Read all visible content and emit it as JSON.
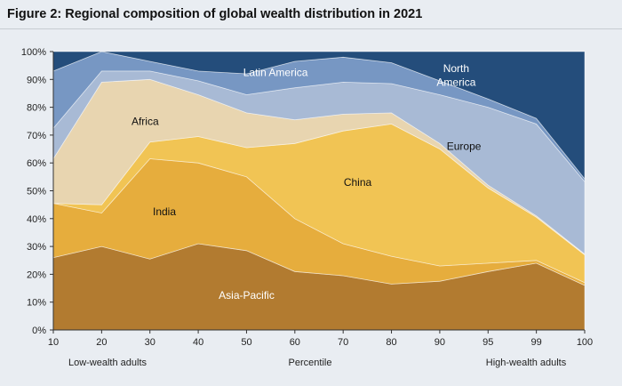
{
  "figure_title": "Figure 2: Regional composition of global wealth distribution in 2021",
  "chart_data": {
    "type": "area",
    "stacked": true,
    "x": [
      "10",
      "20",
      "30",
      "40",
      "50",
      "60",
      "70",
      "80",
      "90",
      "95",
      "99",
      "100"
    ],
    "xlabel": "Percentile",
    "xlabel_left": "Low-wealth adults",
    "xlabel_right": "High-wealth adults",
    "ylim": [
      0,
      100
    ],
    "yticks": [
      "0%",
      "10%",
      "20%",
      "30%",
      "40%",
      "50%",
      "60%",
      "70%",
      "80%",
      "90%",
      "100%"
    ],
    "grid": false,
    "legend": "none (labels inside areas)",
    "series": [
      {
        "name": "Asia-Pacific",
        "values": [
          26,
          30,
          25.5,
          31,
          28.5,
          21,
          19.5,
          16.5,
          17.5,
          21,
          24,
          16
        ],
        "color": "#b27b30",
        "label_color": "#ffffff"
      },
      {
        "name": "India",
        "values": [
          19.5,
          12,
          36,
          29,
          26.5,
          19,
          11.5,
          10,
          5.5,
          3,
          1,
          1
        ],
        "color": "#e6ad3d",
        "label_color": "#111111"
      },
      {
        "name": "China",
        "values": [
          0,
          3,
          6,
          9.5,
          10.5,
          27,
          40.5,
          47.5,
          42,
          27,
          15.5,
          10
        ],
        "color": "#f1c454",
        "label_color": "#111111"
      },
      {
        "name": "Africa",
        "values": [
          16,
          44,
          22.5,
          15,
          12.5,
          8.5,
          6,
          4,
          2,
          1,
          0.5,
          0.3
        ],
        "color": "#e8d5b0",
        "label_color": "#111111"
      },
      {
        "name": "Europe",
        "values": [
          11,
          4,
          3,
          5,
          6.5,
          11.5,
          11.5,
          10.5,
          17.5,
          28,
          33,
          26
        ],
        "color": "#a8bad5",
        "label_color": "#111111"
      },
      {
        "name": "Latin America",
        "values": [
          20.5,
          7,
          3.5,
          3.5,
          7.5,
          9.5,
          9,
          7.5,
          5,
          3,
          2,
          1
        ],
        "color": "#7797c3",
        "label_color": "#ffffff"
      },
      {
        "name": "North America",
        "values": [
          7,
          0,
          3.5,
          7,
          8,
          3.5,
          2,
          4,
          10.5,
          17,
          24,
          45.7
        ],
        "color": "#244d7b",
        "label_color": "#ffffff"
      }
    ],
    "labels": [
      {
        "text": "Asia-Pacific",
        "series": "Asia-Pacific",
        "at_x": 50,
        "at_y": 12.5
      },
      {
        "text": "India",
        "series": "India",
        "at_x": 33,
        "at_y": 42.5
      },
      {
        "text": "China",
        "series": "China",
        "at_x": 73,
        "at_y": 53
      },
      {
        "text": "Africa",
        "series": "Africa",
        "at_x": 29,
        "at_y": 75
      },
      {
        "text": "Europe",
        "series": "Europe",
        "at_x": 92.5,
        "at_y": 66
      },
      {
        "text": "Latin America",
        "series": "Latin America",
        "at_x": 56,
        "at_y": 92.5
      },
      {
        "text": "North",
        "series": "North America",
        "at_x": 91.7,
        "at_y": 94
      },
      {
        "text": "America",
        "series": "North America",
        "at_x": 91.7,
        "at_y": 89
      }
    ]
  }
}
